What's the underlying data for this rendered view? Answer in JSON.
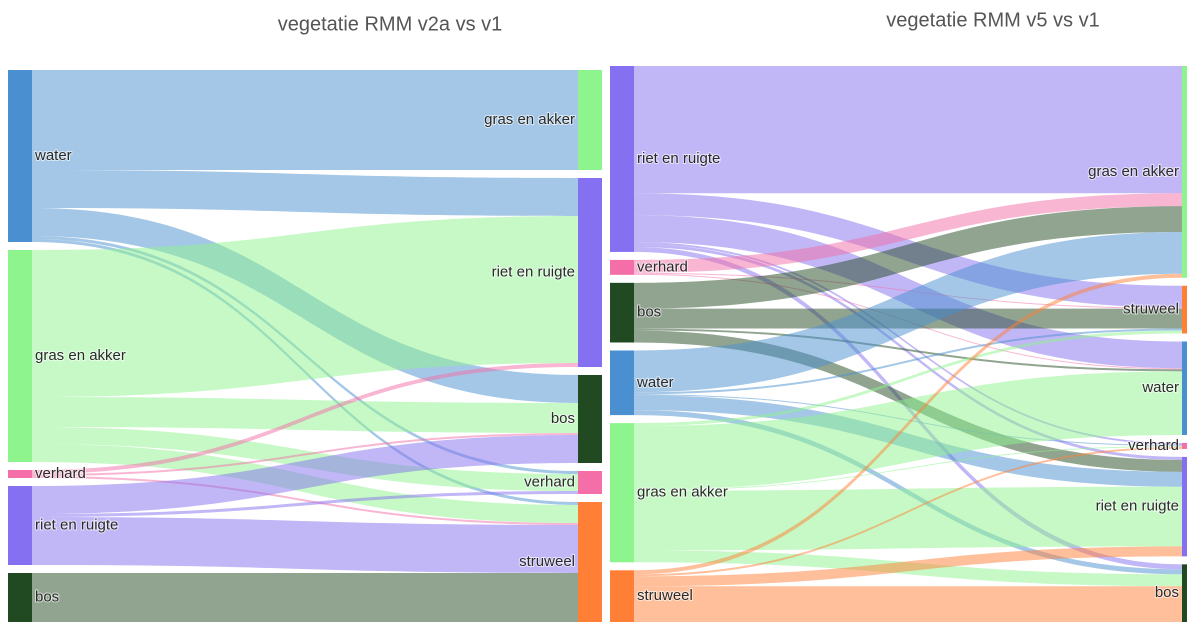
{
  "chart_data": [
    {
      "type": "sankey",
      "title": "vegetatie RMM v2a vs v1",
      "sources": [
        {
          "name": "water",
          "color": "#4a90d0"
        },
        {
          "name": "gras en akker",
          "color": "#8ef48e"
        },
        {
          "name": "verhard",
          "color": "#f46ea8"
        },
        {
          "name": "riet en ruigte",
          "color": "#8470f0"
        },
        {
          "name": "bos",
          "color": "#224a22"
        }
      ],
      "targets": [
        {
          "name": "gras en akker",
          "color": "#8ef48e"
        },
        {
          "name": "riet en ruigte",
          "color": "#8470f0"
        },
        {
          "name": "bos",
          "color": "#224a22"
        },
        {
          "name": "verhard",
          "color": "#f46ea8"
        },
        {
          "name": "struweel",
          "color": "#ff7f36"
        }
      ],
      "links": [
        {
          "source": 0,
          "target": 0,
          "value": 100
        },
        {
          "source": 0,
          "target": 1,
          "value": 38
        },
        {
          "source": 0,
          "target": 2,
          "value": 28
        },
        {
          "source": 0,
          "target": 3,
          "value": 3
        },
        {
          "source": 0,
          "target": 4,
          "value": 3
        },
        {
          "source": 1,
          "target": 1,
          "value": 147
        },
        {
          "source": 1,
          "target": 2,
          "value": 30
        },
        {
          "source": 1,
          "target": 3,
          "value": 17
        },
        {
          "source": 1,
          "target": 4,
          "value": 18
        },
        {
          "source": 2,
          "target": 1,
          "value": 4
        },
        {
          "source": 2,
          "target": 2,
          "value": 2
        },
        {
          "source": 2,
          "target": 4,
          "value": 2
        },
        {
          "source": 3,
          "target": 2,
          "value": 28
        },
        {
          "source": 3,
          "target": 3,
          "value": 3
        },
        {
          "source": 3,
          "target": 4,
          "value": 48
        },
        {
          "source": 4,
          "target": 4,
          "value": 49
        }
      ]
    },
    {
      "type": "sankey",
      "title": "vegetatie RMM v5 vs v1",
      "sources": [
        {
          "name": "riet en ruigte",
          "color": "#8470f0"
        },
        {
          "name": "verhard",
          "color": "#f46ea8"
        },
        {
          "name": "bos",
          "color": "#224a22"
        },
        {
          "name": "water",
          "color": "#4a90d0"
        },
        {
          "name": "gras en akker",
          "color": "#8ef48e"
        },
        {
          "name": "struweel",
          "color": "#ff7f36"
        }
      ],
      "targets": [
        {
          "name": "gras en akker",
          "color": "#8ef48e"
        },
        {
          "name": "struweel",
          "color": "#ff7f36"
        },
        {
          "name": "water",
          "color": "#4a90d0"
        },
        {
          "name": "verhard",
          "color": "#f46ea8"
        },
        {
          "name": "riet en ruigte",
          "color": "#8470f0"
        },
        {
          "name": "bos",
          "color": "#224a22"
        }
      ],
      "links": [
        {
          "source": 0,
          "target": 0,
          "value": 128
        },
        {
          "source": 0,
          "target": 1,
          "value": 22
        },
        {
          "source": 0,
          "target": 2,
          "value": 27
        },
        {
          "source": 0,
          "target": 3,
          "value": 2
        },
        {
          "source": 0,
          "target": 4,
          "value": 3
        },
        {
          "source": 0,
          "target": 5,
          "value": 5
        },
        {
          "source": 1,
          "target": 0,
          "value": 13
        },
        {
          "source": 1,
          "target": 1,
          "value": 1
        },
        {
          "source": 1,
          "target": 2,
          "value": 1
        },
        {
          "source": 2,
          "target": 0,
          "value": 26
        },
        {
          "source": 2,
          "target": 1,
          "value": 20
        },
        {
          "source": 2,
          "target": 2,
          "value": 2
        },
        {
          "source": 2,
          "target": 4,
          "value": 12
        },
        {
          "source": 3,
          "target": 0,
          "value": 42
        },
        {
          "source": 3,
          "target": 1,
          "value": 2
        },
        {
          "source": 3,
          "target": 3,
          "value": 1
        },
        {
          "source": 3,
          "target": 4,
          "value": 15
        },
        {
          "source": 3,
          "target": 5,
          "value": 5
        },
        {
          "source": 4,
          "target": 1,
          "value": 3
        },
        {
          "source": 4,
          "target": 2,
          "value": 64
        },
        {
          "source": 4,
          "target": 3,
          "value": 1
        },
        {
          "source": 4,
          "target": 4,
          "value": 60
        },
        {
          "source": 4,
          "target": 5,
          "value": 12
        },
        {
          "source": 5,
          "target": 0,
          "value": 4
        },
        {
          "source": 5,
          "target": 3,
          "value": 2
        },
        {
          "source": 5,
          "target": 4,
          "value": 10
        },
        {
          "source": 5,
          "target": 5,
          "value": 36
        }
      ]
    }
  ]
}
